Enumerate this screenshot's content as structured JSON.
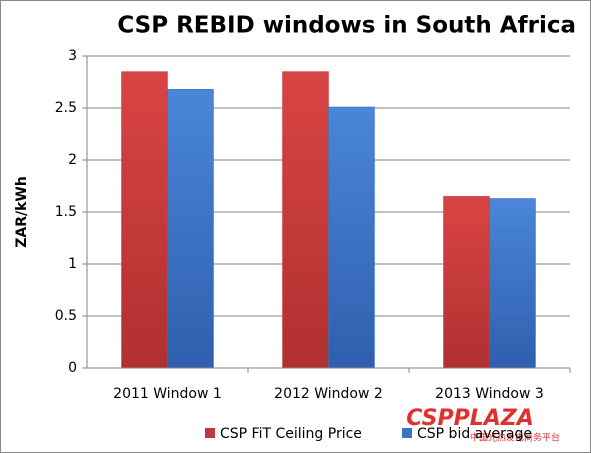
{
  "chart_data": {
    "type": "bar",
    "title": "CSP REBID windows in South Africa",
    "y_label": "ZAR/kWh",
    "categories": [
      "2011 Window 1",
      "2012 Window 2",
      "2013 Window 3"
    ],
    "series": [
      {
        "name": "CSP FiT Ceiling Price",
        "color": "#c0393b",
        "values": [
          2.85,
          2.85,
          1.65
        ]
      },
      {
        "name": "CSP bid average",
        "color": "#3a72c4",
        "values": [
          2.68,
          2.51,
          1.63
        ]
      }
    ],
    "ylim": [
      0,
      3
    ],
    "yticks": [
      0,
      0.5,
      1,
      1.5,
      2,
      2.5,
      3
    ],
    "grid": true,
    "legend": "bottom",
    "watermark": "CSPPLAZA",
    "watermark_subtitle": "中国光热发电商务平台"
  }
}
